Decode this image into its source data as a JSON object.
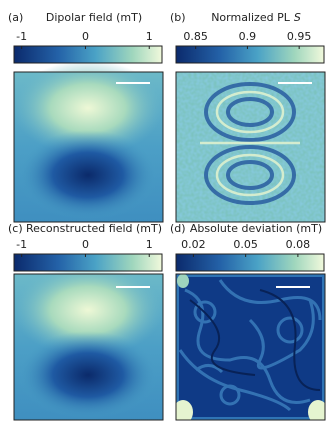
{
  "panels": [
    {
      "label": "(a)",
      "title": "Dipolar field (mT)",
      "clim": [
        -1.12,
        1.2
      ],
      "cticks": [
        -1,
        0,
        1
      ]
    },
    {
      "label": "(b)",
      "title": "Normalized PL",
      "title_symbol": "S",
      "clim": [
        0.831,
        0.974
      ],
      "cticks": [
        0.85,
        0.9,
        0.95
      ]
    },
    {
      "label": "(c)",
      "title": "Reconstructed field (mT)",
      "clim": [
        -1.12,
        1.2
      ],
      "cticks": [
        -1,
        0,
        1
      ]
    },
    {
      "label": "(d)",
      "title": "Absolute deviation (mT)",
      "clim": [
        0.01,
        0.095
      ],
      "cticks": [
        0.02,
        0.05,
        0.08
      ]
    }
  ]
}
